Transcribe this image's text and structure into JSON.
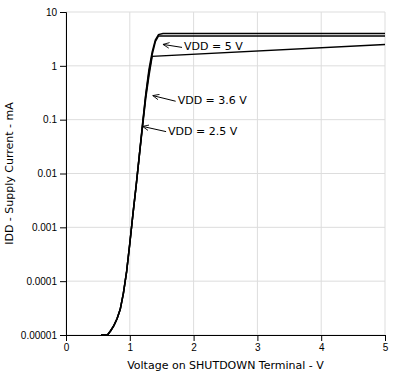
{
  "chart_data": {
    "type": "line",
    "log": "y",
    "grid": true,
    "xlabel": "Voltage on SHUTDOWN Terminal - V",
    "ylabel": "IDD - Supply Current - mA",
    "xlim": [
      0,
      5
    ],
    "ylim": [
      1e-05,
      10
    ],
    "xticks": [
      0,
      1,
      2,
      3,
      4,
      5
    ],
    "yticks": [
      1e-05,
      0.0001,
      0.001,
      0.01,
      0.1,
      1,
      10
    ],
    "series": [
      {
        "color": "#000000",
        "x": [
          0.55,
          0.65,
          0.7,
          0.75,
          0.8,
          0.85,
          0.9,
          0.95,
          1.0,
          1.05,
          1.1,
          1.15,
          1.2,
          1.25,
          1.3,
          1.35,
          1.4,
          1.45,
          1.52,
          1.6,
          5.0
        ],
        "values": [
          1e-05,
          1e-05,
          1.2e-05,
          1.5e-05,
          2e-05,
          3e-05,
          6e-05,
          0.00015,
          0.0005,
          0.0018,
          0.006,
          0.022,
          0.085,
          0.3,
          0.85,
          1.8,
          3.0,
          3.8,
          4.0,
          4.0,
          4.0
        ]
      },
      {
        "color": "#000000",
        "x": [
          0.55,
          0.65,
          0.7,
          0.75,
          0.8,
          0.85,
          0.9,
          0.95,
          1.0,
          1.05,
          1.1,
          1.15,
          1.2,
          1.25,
          1.3,
          1.35,
          1.4,
          1.45,
          5.0
        ],
        "values": [
          1e-05,
          1e-05,
          1.2e-05,
          1.5e-05,
          2e-05,
          3e-05,
          6e-05,
          0.00015,
          0.0005,
          0.0018,
          0.006,
          0.022,
          0.08,
          0.28,
          0.75,
          1.6,
          2.8,
          3.6,
          3.6
        ]
      },
      {
        "color": "#000000",
        "x": [
          0.55,
          0.65,
          0.7,
          0.75,
          0.8,
          0.85,
          0.9,
          0.95,
          1.0,
          1.05,
          1.1,
          1.15,
          1.2,
          1.25,
          1.3,
          1.35,
          5.0
        ],
        "values": [
          1e-05,
          1e-05,
          1.2e-05,
          1.5e-05,
          2e-05,
          3e-05,
          6e-05,
          0.00015,
          0.0005,
          0.0018,
          0.006,
          0.022,
          0.075,
          0.25,
          0.65,
          1.5,
          2.5
        ]
      }
    ],
    "annotations": [
      {
        "text": "VDD = 5 V",
        "xy": [
          1.52,
          2.5
        ],
        "xytext": [
          1.85,
          2.2
        ]
      },
      {
        "text": "VDD = 3.6 V",
        "xy": [
          1.36,
          0.28
        ],
        "xytext": [
          1.75,
          0.22
        ]
      },
      {
        "text": "VDD = 2.5 V",
        "xy": [
          1.2,
          0.075
        ],
        "xytext": [
          1.6,
          0.06
        ]
      }
    ]
  }
}
